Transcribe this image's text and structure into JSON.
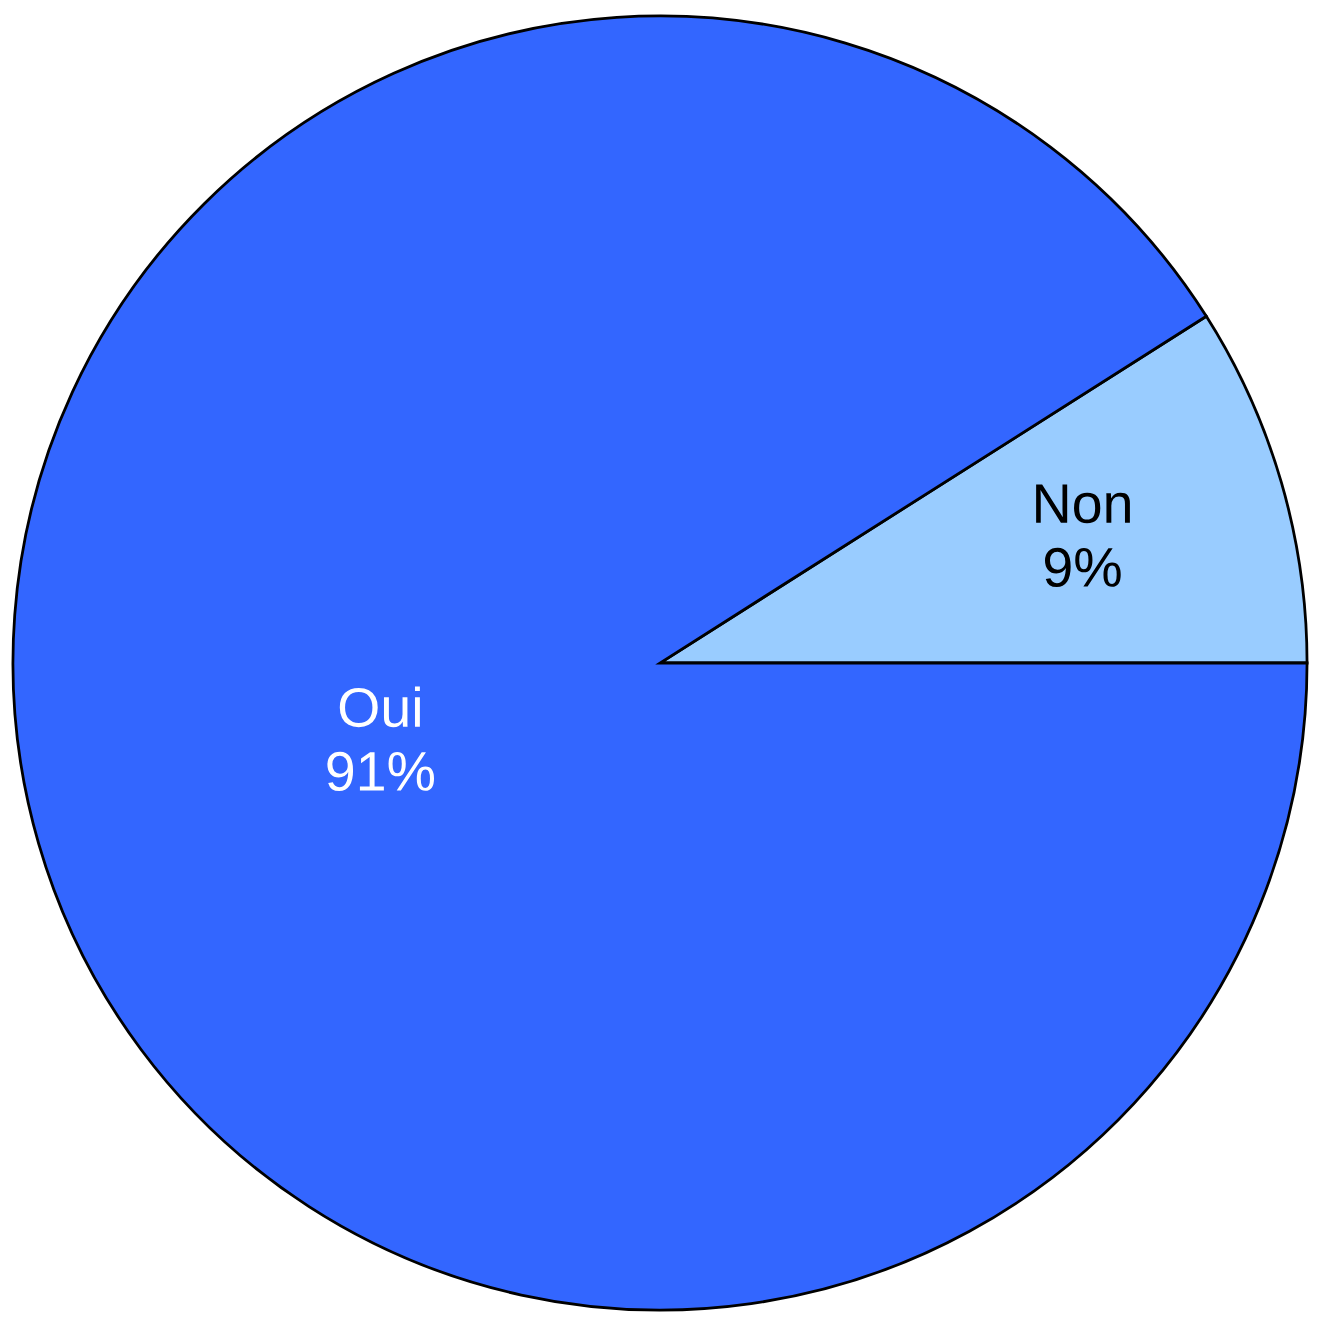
{
  "chart_data": {
    "type": "pie",
    "categories": [
      "Oui",
      "Non"
    ],
    "values": [
      91,
      9
    ],
    "colors": [
      "#3366ff",
      "#99ccff"
    ],
    "value_labels": [
      "91%",
      "9%"
    ]
  }
}
